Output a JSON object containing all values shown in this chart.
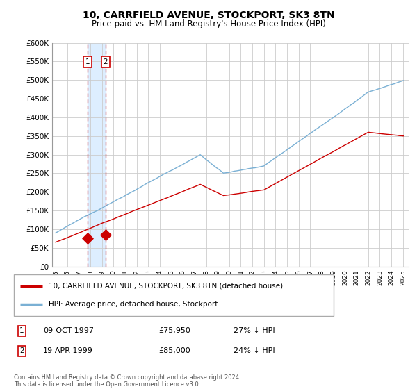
{
  "title": "10, CARRFIELD AVENUE, STOCKPORT, SK3 8TN",
  "subtitle": "Price paid vs. HM Land Registry's House Price Index (HPI)",
  "ylim": [
    0,
    600000
  ],
  "yticks": [
    0,
    50000,
    100000,
    150000,
    200000,
    250000,
    300000,
    350000,
    400000,
    450000,
    500000,
    550000,
    600000
  ],
  "ytick_labels": [
    "£0",
    "£50K",
    "£100K",
    "£150K",
    "£200K",
    "£250K",
    "£300K",
    "£350K",
    "£400K",
    "£450K",
    "£500K",
    "£550K",
    "£600K"
  ],
  "hpi_color": "#7ab0d4",
  "price_color": "#cc0000",
  "dot_color": "#cc0000",
  "vline_color": "#cc0000",
  "shade_color": "#ddeeff",
  "t1": 1997.78,
  "t2": 1999.3,
  "p1": 75950,
  "p2": 85000,
  "legend_label_price": "10, CARRFIELD AVENUE, STOCKPORT, SK3 8TN (detached house)",
  "legend_label_hpi": "HPI: Average price, detached house, Stockport",
  "footnote": "Contains HM Land Registry data © Crown copyright and database right 2024.\nThis data is licensed under the Open Government Licence v3.0.",
  "background_color": "#ffffff",
  "grid_color": "#cccccc",
  "xmin": 1994.7,
  "xmax": 2025.5
}
